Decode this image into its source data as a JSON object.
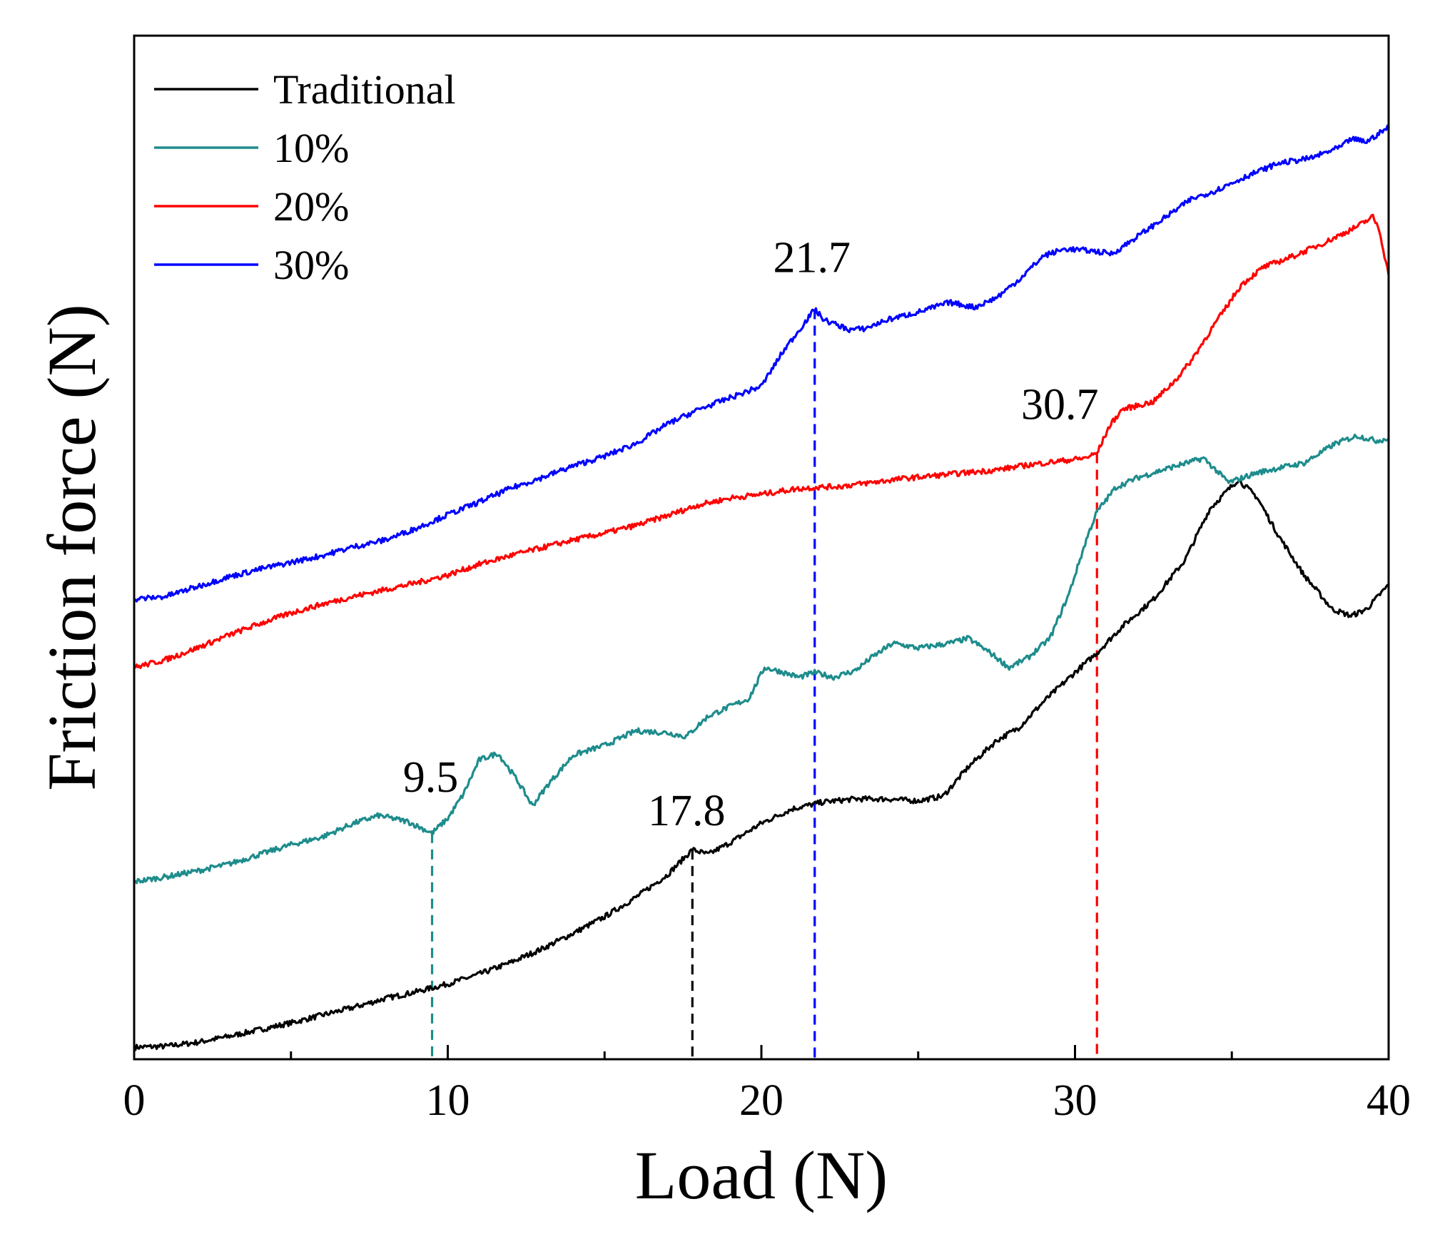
{
  "chart_data": {
    "type": "line",
    "title": "",
    "xlabel": "Load (N)",
    "ylabel": "Friction force (N)",
    "xlim": [
      0,
      40
    ],
    "ylim": [
      0,
      100
    ],
    "y_ticks_labeled": false,
    "grid": false,
    "legend_position": "top-left",
    "x_ticks": [
      {
        "value": 0,
        "label": "0"
      },
      {
        "value": 10,
        "label": "10"
      },
      {
        "value": 20,
        "label": "20"
      },
      {
        "value": 30,
        "label": "30"
      },
      {
        "value": 40,
        "label": "40"
      }
    ],
    "series": [
      {
        "name": "Traditional",
        "color": "#000000",
        "points": [
          [
            0,
            0.5
          ],
          [
            1,
            0.6
          ],
          [
            2,
            1.0
          ],
          [
            3,
            1.6
          ],
          [
            4,
            2.3
          ],
          [
            5,
            3.0
          ],
          [
            6,
            3.8
          ],
          [
            7,
            4.6
          ],
          [
            8,
            5.5
          ],
          [
            9,
            6.2
          ],
          [
            10,
            7.0
          ],
          [
            11,
            8.0
          ],
          [
            12,
            9.2
          ],
          [
            13,
            10.6
          ],
          [
            14,
            12.2
          ],
          [
            15,
            13.9
          ],
          [
            16,
            15.9
          ],
          [
            17,
            18.2
          ],
          [
            17.8,
            20.8
          ],
          [
            18.3,
            20.3
          ],
          [
            19,
            21.5
          ],
          [
            20,
            23.5
          ],
          [
            21,
            25.0
          ],
          [
            22,
            25.7
          ],
          [
            23,
            26.0
          ],
          [
            24,
            26.0
          ],
          [
            25,
            25.8
          ],
          [
            25.8,
            26.3
          ],
          [
            26.6,
            29.3
          ],
          [
            27.5,
            32.0
          ],
          [
            28.2,
            33.3
          ],
          [
            29,
            36.0
          ],
          [
            30,
            39.0
          ],
          [
            30.7,
            41.0
          ],
          [
            31.5,
            43.7
          ],
          [
            32.5,
            46.5
          ],
          [
            33.5,
            50.5
          ],
          [
            34.3,
            55.8
          ],
          [
            35.2,
            58.8
          ],
          [
            35.8,
            57.0
          ],
          [
            36.5,
            53.0
          ],
          [
            37.3,
            49.0
          ],
          [
            38.2,
            45.5
          ],
          [
            38.8,
            44.8
          ],
          [
            39.3,
            45.5
          ],
          [
            40,
            48.0
          ]
        ]
      },
      {
        "name": "10%",
        "color": "#1e8c8c",
        "points": [
          [
            0,
            17.5
          ],
          [
            1,
            18.0
          ],
          [
            2,
            18.6
          ],
          [
            3,
            19.3
          ],
          [
            4,
            20.3
          ],
          [
            5,
            21.3
          ],
          [
            6,
            22.1
          ],
          [
            7,
            23.5
          ],
          [
            7.8,
            24.3
          ],
          [
            8.7,
            23.7
          ],
          [
            9.5,
            22.5
          ],
          [
            10,
            24.0
          ],
          [
            10.5,
            26.5
          ],
          [
            11,
            30.0
          ],
          [
            11.6,
            30.7
          ],
          [
            12.2,
            28.0
          ],
          [
            12.7,
            25.3
          ],
          [
            13.2,
            27.5
          ],
          [
            14,
            30.5
          ],
          [
            15,
            31.5
          ],
          [
            16,
            33.0
          ],
          [
            17,
            32.8
          ],
          [
            17.6,
            32.4
          ],
          [
            18.3,
            34.5
          ],
          [
            19,
            35.5
          ],
          [
            19.6,
            36.3
          ],
          [
            20.1,
            39.5
          ],
          [
            20.6,
            39.1
          ],
          [
            21.2,
            38.5
          ],
          [
            21.7,
            39.0
          ],
          [
            22.3,
            38.5
          ],
          [
            23,
            39.2
          ],
          [
            23.5,
            40.5
          ],
          [
            24.2,
            42.0
          ],
          [
            25,
            41.5
          ],
          [
            26,
            42.0
          ],
          [
            26.6,
            42.5
          ],
          [
            27.3,
            41.0
          ],
          [
            27.9,
            39.5
          ],
          [
            28.5,
            40.5
          ],
          [
            29.2,
            42.5
          ],
          [
            29.8,
            47.0
          ],
          [
            30.4,
            53.0
          ],
          [
            30.7,
            55.5
          ],
          [
            31.3,
            58.0
          ],
          [
            32,
            59.0
          ],
          [
            33,
            60.0
          ],
          [
            34.1,
            61.0
          ],
          [
            34.9,
            58.5
          ],
          [
            35.8,
            59.5
          ],
          [
            36.5,
            60.0
          ],
          [
            37.3,
            60.5
          ],
          [
            38.3,
            62.5
          ],
          [
            39,
            63.3
          ],
          [
            39.6,
            62.8
          ],
          [
            40,
            63.0
          ]
        ]
      },
      {
        "name": "20%",
        "color": "#ff0000",
        "points": [
          [
            0,
            39.5
          ],
          [
            1,
            40.3
          ],
          [
            2,
            41.5
          ],
          [
            3,
            42.8
          ],
          [
            4,
            44.0
          ],
          [
            5,
            45.1
          ],
          [
            6,
            46.0
          ],
          [
            7,
            46.8
          ],
          [
            8,
            47.5
          ],
          [
            9,
            48.2
          ],
          [
            10,
            49.0
          ],
          [
            11,
            50.1
          ],
          [
            12,
            51.0
          ],
          [
            13,
            51.8
          ],
          [
            14,
            52.6
          ],
          [
            15,
            53.3
          ],
          [
            16,
            54.1
          ],
          [
            17,
            55.1
          ],
          [
            18,
            56.2
          ],
          [
            19,
            56.9
          ],
          [
            20,
            57.3
          ],
          [
            21,
            57.8
          ],
          [
            21.7,
            58.0
          ],
          [
            22.5,
            58.1
          ],
          [
            23.5,
            58.5
          ],
          [
            24.5,
            58.9
          ],
          [
            25.5,
            59.2
          ],
          [
            26.5,
            59.5
          ],
          [
            27.5,
            59.8
          ],
          [
            28.5,
            60.3
          ],
          [
            29.5,
            60.7
          ],
          [
            30.3,
            61.0
          ],
          [
            30.7,
            61.5
          ],
          [
            31.1,
            64.3
          ],
          [
            31.5,
            66.0
          ],
          [
            32.5,
            66.8
          ],
          [
            33.2,
            69.0
          ],
          [
            33.7,
            71.0
          ],
          [
            34.4,
            74.5
          ],
          [
            35.3,
            78.8
          ],
          [
            36,
            80.6
          ],
          [
            37,
            81.8
          ],
          [
            38,
            83.2
          ],
          [
            39,
            84.8
          ],
          [
            39.5,
            85.8
          ],
          [
            39.7,
            84.5
          ],
          [
            40,
            79.8
          ]
        ]
      },
      {
        "name": "30%",
        "color": "#0000ff",
        "points": [
          [
            0,
            46.5
          ],
          [
            1,
            46.8
          ],
          [
            2,
            47.8
          ],
          [
            3,
            48.8
          ],
          [
            4,
            49.6
          ],
          [
            5,
            50.3
          ],
          [
            6,
            51.0
          ],
          [
            7,
            51.9
          ],
          [
            8,
            52.6
          ],
          [
            9,
            53.8
          ],
          [
            10,
            55.2
          ],
          [
            11,
            56.5
          ],
          [
            12,
            57.9
          ],
          [
            13,
            59.0
          ],
          [
            14,
            60.2
          ],
          [
            15,
            61.2
          ],
          [
            16,
            62.5
          ],
          [
            17,
            64.5
          ],
          [
            18,
            66.0
          ],
          [
            19,
            67.2
          ],
          [
            20,
            68.4
          ],
          [
            20.7,
            72.0
          ],
          [
            21.4,
            75.0
          ],
          [
            21.7,
            76.3
          ],
          [
            22,
            75.2
          ],
          [
            22.8,
            74.2
          ],
          [
            23.3,
            74.3
          ],
          [
            24,
            75.2
          ],
          [
            25,
            76.0
          ],
          [
            26,
            77.0
          ],
          [
            26.8,
            76.5
          ],
          [
            27.5,
            77.5
          ],
          [
            28.2,
            79.3
          ],
          [
            29,
            81.8
          ],
          [
            29.7,
            82.5
          ],
          [
            30.5,
            82.3
          ],
          [
            31.2,
            82.0
          ],
          [
            32,
            83.8
          ],
          [
            33,
            86.0
          ],
          [
            33.7,
            87.6
          ],
          [
            34.5,
            88.5
          ],
          [
            35.5,
            90.0
          ],
          [
            36.5,
            91.3
          ],
          [
            37.5,
            91.8
          ],
          [
            38.5,
            93.0
          ],
          [
            38.8,
            93.8
          ],
          [
            39.3,
            93.5
          ],
          [
            40,
            95.0
          ]
        ]
      }
    ],
    "annotations": [
      {
        "text": "9.5",
        "x": 9.5,
        "y": 22.5,
        "series": "10%"
      },
      {
        "text": "17.8",
        "x": 17.8,
        "y": 20.8,
        "series": "Traditional"
      },
      {
        "text": "21.7",
        "x": 21.7,
        "y": 76.3,
        "series": "30%"
      },
      {
        "text": "30.7",
        "x": 30.7,
        "y": 61.5,
        "series": "20%"
      }
    ]
  }
}
